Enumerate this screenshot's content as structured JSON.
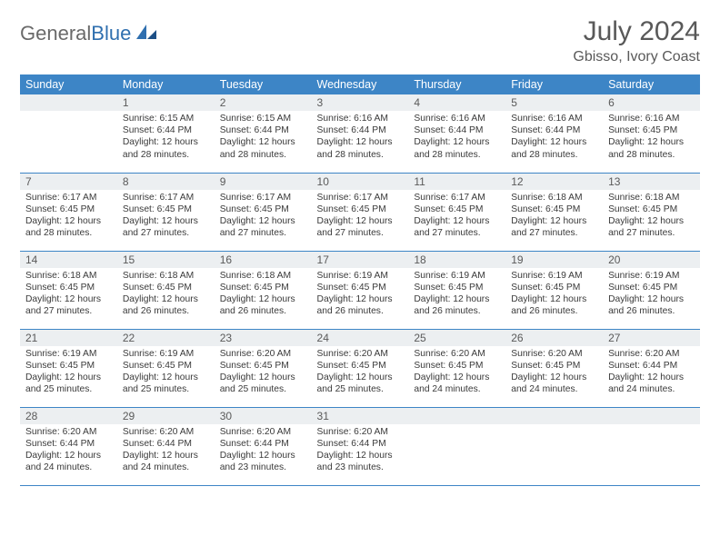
{
  "brand": {
    "general": "General",
    "blue": "Blue"
  },
  "title": "July 2024",
  "location": "Gbisso, Ivory Coast",
  "colors": {
    "header_bg": "#3d85c6",
    "header_fg": "#ffffff",
    "daynum_bg": "#eceff1",
    "rule": "#3d85c6",
    "logo_gray": "#6a6a6a",
    "logo_blue": "#2f6faf",
    "text": "#3a3a3a"
  },
  "weekdays": [
    "Sunday",
    "Monday",
    "Tuesday",
    "Wednesday",
    "Thursday",
    "Friday",
    "Saturday"
  ],
  "layout": {
    "first_weekday_index": 1,
    "days_in_month": 31
  },
  "days": {
    "1": {
      "sunrise": "6:15 AM",
      "sunset": "6:44 PM",
      "daylight": "12 hours and 28 minutes."
    },
    "2": {
      "sunrise": "6:15 AM",
      "sunset": "6:44 PM",
      "daylight": "12 hours and 28 minutes."
    },
    "3": {
      "sunrise": "6:16 AM",
      "sunset": "6:44 PM",
      "daylight": "12 hours and 28 minutes."
    },
    "4": {
      "sunrise": "6:16 AM",
      "sunset": "6:44 PM",
      "daylight": "12 hours and 28 minutes."
    },
    "5": {
      "sunrise": "6:16 AM",
      "sunset": "6:44 PM",
      "daylight": "12 hours and 28 minutes."
    },
    "6": {
      "sunrise": "6:16 AM",
      "sunset": "6:45 PM",
      "daylight": "12 hours and 28 minutes."
    },
    "7": {
      "sunrise": "6:17 AM",
      "sunset": "6:45 PM",
      "daylight": "12 hours and 28 minutes."
    },
    "8": {
      "sunrise": "6:17 AM",
      "sunset": "6:45 PM",
      "daylight": "12 hours and 27 minutes."
    },
    "9": {
      "sunrise": "6:17 AM",
      "sunset": "6:45 PM",
      "daylight": "12 hours and 27 minutes."
    },
    "10": {
      "sunrise": "6:17 AM",
      "sunset": "6:45 PM",
      "daylight": "12 hours and 27 minutes."
    },
    "11": {
      "sunrise": "6:17 AM",
      "sunset": "6:45 PM",
      "daylight": "12 hours and 27 minutes."
    },
    "12": {
      "sunrise": "6:18 AM",
      "sunset": "6:45 PM",
      "daylight": "12 hours and 27 minutes."
    },
    "13": {
      "sunrise": "6:18 AM",
      "sunset": "6:45 PM",
      "daylight": "12 hours and 27 minutes."
    },
    "14": {
      "sunrise": "6:18 AM",
      "sunset": "6:45 PM",
      "daylight": "12 hours and 27 minutes."
    },
    "15": {
      "sunrise": "6:18 AM",
      "sunset": "6:45 PM",
      "daylight": "12 hours and 26 minutes."
    },
    "16": {
      "sunrise": "6:18 AM",
      "sunset": "6:45 PM",
      "daylight": "12 hours and 26 minutes."
    },
    "17": {
      "sunrise": "6:19 AM",
      "sunset": "6:45 PM",
      "daylight": "12 hours and 26 minutes."
    },
    "18": {
      "sunrise": "6:19 AM",
      "sunset": "6:45 PM",
      "daylight": "12 hours and 26 minutes."
    },
    "19": {
      "sunrise": "6:19 AM",
      "sunset": "6:45 PM",
      "daylight": "12 hours and 26 minutes."
    },
    "20": {
      "sunrise": "6:19 AM",
      "sunset": "6:45 PM",
      "daylight": "12 hours and 26 minutes."
    },
    "21": {
      "sunrise": "6:19 AM",
      "sunset": "6:45 PM",
      "daylight": "12 hours and 25 minutes."
    },
    "22": {
      "sunrise": "6:19 AM",
      "sunset": "6:45 PM",
      "daylight": "12 hours and 25 minutes."
    },
    "23": {
      "sunrise": "6:20 AM",
      "sunset": "6:45 PM",
      "daylight": "12 hours and 25 minutes."
    },
    "24": {
      "sunrise": "6:20 AM",
      "sunset": "6:45 PM",
      "daylight": "12 hours and 25 minutes."
    },
    "25": {
      "sunrise": "6:20 AM",
      "sunset": "6:45 PM",
      "daylight": "12 hours and 24 minutes."
    },
    "26": {
      "sunrise": "6:20 AM",
      "sunset": "6:45 PM",
      "daylight": "12 hours and 24 minutes."
    },
    "27": {
      "sunrise": "6:20 AM",
      "sunset": "6:44 PM",
      "daylight": "12 hours and 24 minutes."
    },
    "28": {
      "sunrise": "6:20 AM",
      "sunset": "6:44 PM",
      "daylight": "12 hours and 24 minutes."
    },
    "29": {
      "sunrise": "6:20 AM",
      "sunset": "6:44 PM",
      "daylight": "12 hours and 24 minutes."
    },
    "30": {
      "sunrise": "6:20 AM",
      "sunset": "6:44 PM",
      "daylight": "12 hours and 23 minutes."
    },
    "31": {
      "sunrise": "6:20 AM",
      "sunset": "6:44 PM",
      "daylight": "12 hours and 23 minutes."
    }
  },
  "labels": {
    "sunrise": "Sunrise:",
    "sunset": "Sunset:",
    "daylight": "Daylight:"
  }
}
